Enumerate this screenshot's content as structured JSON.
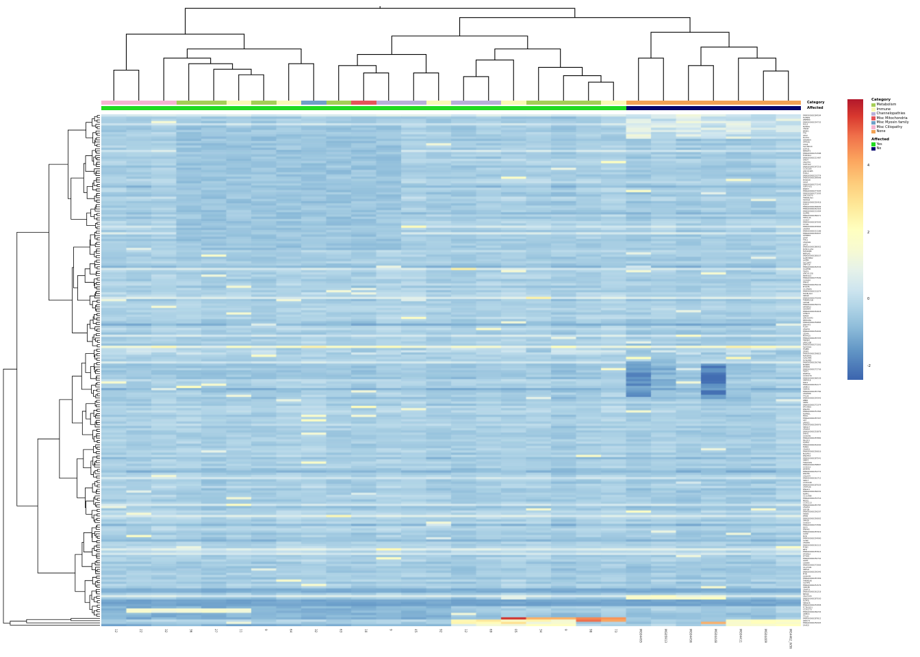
{
  "annotations": {
    "category_title": "Category",
    "affected_title": "Affected",
    "column_categories": [
      "ciliopathy",
      "ciliopathy",
      "ciliopathy",
      "metabolism",
      "metabolism",
      "immune",
      "metabolism",
      "immune",
      "myosin",
      "metabolism",
      "mitochondria",
      "channelopathies",
      "channelopathies",
      "immune",
      "channelopathies",
      "channelopathies",
      "immune",
      "metabolism",
      "metabolism",
      "metabolism",
      "immune",
      "none",
      "none",
      "none",
      "none",
      "none",
      "none",
      "none"
    ],
    "column_affected": [
      "yes",
      "yes",
      "yes",
      "yes",
      "yes",
      "yes",
      "yes",
      "yes",
      "yes",
      "yes",
      "yes",
      "yes",
      "yes",
      "yes",
      "yes",
      "yes",
      "yes",
      "yes",
      "yes",
      "yes",
      "yes",
      "no",
      "no",
      "no",
      "no",
      "no",
      "no",
      "no"
    ]
  },
  "legend": {
    "category_title": "Category",
    "category_items": [
      {
        "label": "Metabolism",
        "key": "metabolism",
        "color": "#A5CE56"
      },
      {
        "label": "Immune",
        "key": "immune",
        "color": "#FAFAB4"
      },
      {
        "label": "Channelopathies",
        "key": "channelopathies",
        "color": "#B8B0D8"
      },
      {
        "label": "Misc Mitochondria",
        "key": "mitochondria",
        "color": "#E4555A"
      },
      {
        "label": "Misc Myosin family",
        "key": "myosin",
        "color": "#6FA0C8"
      },
      {
        "label": "Misc Ciliopathy",
        "key": "ciliopathy",
        "color": "#F6B3D0"
      },
      {
        "label": "None",
        "key": "none",
        "color": "#F2A254"
      }
    ],
    "affected_title": "Affected",
    "affected_items": [
      {
        "label": "Yes",
        "key": "yes",
        "color": "#21DB21"
      },
      {
        "label": "No",
        "key": "no",
        "color": "#05056E"
      }
    ]
  },
  "chart_data": {
    "type": "heatmap",
    "n_rows": 230,
    "n_cols": 28,
    "value_range": [
      -2.4,
      6.0
    ],
    "colorbar_ticks": [
      4,
      2,
      0,
      -2
    ],
    "grid": false,
    "legend_position": "right",
    "colormap_stops": [
      {
        "v": -2.4,
        "c": "#3B64AE"
      },
      {
        "v": -1.5,
        "c": "#6397C6"
      },
      {
        "v": -0.8,
        "c": "#8FBDDA"
      },
      {
        "v": -0.2,
        "c": "#B2D5E7"
      },
      {
        "v": 0.3,
        "c": "#CEE5EF"
      },
      {
        "v": 0.9,
        "c": "#E6F2E9"
      },
      {
        "v": 1.5,
        "c": "#F7FAD1"
      },
      {
        "v": 2.1,
        "c": "#FFFFBF"
      },
      {
        "v": 2.8,
        "c": "#FEE999"
      },
      {
        "v": 3.5,
        "c": "#FDCC7B"
      },
      {
        "v": 4.2,
        "c": "#FBA35D"
      },
      {
        "v": 4.9,
        "c": "#F0704A"
      },
      {
        "v": 5.5,
        "c": "#D8382E"
      },
      {
        "v": 6.0,
        "c": "#B2182B"
      }
    ],
    "col_labels": [
      "12",
      "22",
      "32",
      "36",
      "27",
      "11",
      "9",
      "64",
      "32",
      "63",
      "10",
      "9",
      "45",
      "92",
      "12",
      "69",
      "05",
      "34",
      "9",
      "98",
      "73",
      "MG04495",
      "MG05913",
      "MG04456",
      "MG04448",
      "MG04411",
      "MG04409",
      "MG4462_W36"
    ],
    "row_labels": [
      "ENSG00000284594",
      "FGFBP2",
      "ZNF880",
      "ENSG00000254732",
      "RGL3",
      "NANOG",
      "VSIG8",
      "BRSK1",
      "TTK",
      "VAV2",
      "PLCD4",
      "GRAMD4",
      "ATP1B1",
      "COA4",
      "SLC38A10",
      "GSTO2",
      "NMNAT2",
      "ENSG00000231588",
      "FOXD4L1",
      "ENSG00000221487",
      "GNG4",
      "C8orf34",
      "SULT1A2",
      "ENSG00000267216",
      "CCDC185",
      "LINC01985",
      "FOXL1",
      "ENSG00000233774",
      "ENSG00000269998",
      "PCSK1N",
      "ALG2",
      "ENSG00000273142",
      "USP3-AS1",
      "PARD3",
      "ENSG00000277005",
      "ENSG00000271005",
      "LINC00570",
      "TPRKB-AS1",
      "S100A2",
      "ENSG00000220418",
      "KLHL4",
      "ENSG00000269699",
      "ENSG00000261324",
      "ENSG00000231404",
      "GLIPR1",
      "ENSG00000280071",
      "TPM1-AS",
      "CCDC7",
      "ENSG00000267092",
      "TTYH1",
      "ENSG00000245664",
      "CFAP44",
      "ENSG00000221188",
      "ENSG00000263007",
      "STMND1",
      "GFAP",
      "TMC1",
      "CFAP161",
      "GPT2",
      "ENSG00000280952",
      "RUSC1-AS1",
      "FAM166B",
      "MRPL45",
      "ENSG00000285037",
      "GAPDHP62",
      "AATBC",
      "SLC16A3",
      "ZNF728",
      "ENSG00000261534",
      "CALHM6",
      "TEKT4",
      "LINC01128",
      "PKHD1L1",
      "ENSG00000273599",
      "CLDN34",
      "DNAI2",
      "ENSG00000259134",
      "MYO7B",
      "C1QTNF8",
      "ENSG00000231074",
      "HOXB-AS3",
      "SPAG6",
      "ENSG00000270049",
      "TMEM151B",
      "CRYGN",
      "ENSG00000256151",
      "KRT8P12",
      "ADGRF4",
      "ENSG00000261618",
      "SHISA3",
      "RIMS4",
      "LINC02043",
      "PPP1R3G",
      "ENSG00000259865",
      "DNAAF3",
      "TCHH",
      "CFAP70",
      "ENSG00000254092",
      "CES4A",
      "MS4A15",
      "ENSG00000287335",
      "TRIM67",
      "LRRC10B",
      "ENSG00000273301",
      "SLCO4A1",
      "HSPB9",
      "ZP3P2",
      "ENSG00000259823",
      "FAM183A",
      "C20orf85",
      "DYNLRB2",
      "ENSG00000250786",
      "MORN5",
      "WDR49",
      "ENSG00000272736",
      "TEKT1",
      "RSPH4A",
      "CCDC170",
      "ENSG00000260539",
      "SPATA18",
      "DRC1",
      "ENSG00000261177",
      "ARMC3",
      "VWA3A",
      "ENSG00000287784",
      "CFAP206",
      "TTC29",
      "ENSG00000254343",
      "ZBBX",
      "SNTN",
      "ENSG00000272374",
      "EFCAB10",
      "DNAH9",
      "ENSG00000251364",
      "ROPN1L",
      "MNS1",
      "ENSG00000287307",
      "AK7",
      "LRRIQ1",
      "ENSG00000259976",
      "SPAG17",
      "CFAP43",
      "ENSG00000253878",
      "DNAI1",
      "CCDC39",
      "ENSG00000287882",
      "PIH1D3",
      "RSPH9",
      "ENSG00000261040",
      "FANK1",
      "CFAP53",
      "ENSG00000250616",
      "MAATS1",
      "DNAH12",
      "ENSG00000287541",
      "SPEF2",
      "TSNAXIP1",
      "ENSG00000258807",
      "CCDC13",
      "WDR78",
      "ENSG00000254772",
      "DNAH6",
      "C9orf24",
      "ENSG00000261712",
      "SPA17",
      "CCDC146",
      "ENSG00000287029",
      "CFAP126",
      "DNALI1",
      "ENSG00000260032",
      "RSPH1",
      "C11orf88",
      "ENSG00000253716",
      "MEIG1",
      "CCDC113",
      "ENSG00000287787",
      "CFAP52",
      "ODF3B",
      "ENSG00000259207",
      "TPPP3",
      "EFHB",
      "ENSG00000250802",
      "SPAG8",
      "CCDC17",
      "ENSG00000272582",
      "IQCG",
      "DNAH5",
      "ENSG00000287919",
      "CATIP",
      "MOK",
      "ENSG00000254990",
      "CCNO",
      "CFAP45",
      "ENSG00000261115",
      "FOXJ1",
      "PIFO",
      "ENSG00000287614",
      "STOML3",
      "DTHD1",
      "ENSG00000250742",
      "AGR3",
      "CDHR4",
      "ENSG00000272905",
      "C1orf194",
      "SNTG2",
      "ENSG00000259345",
      "MYB",
      "CCDC78",
      "ENSG00000287456",
      "TMEM190",
      "ULK4P3",
      "ENSG00000251576",
      "VWA3B",
      "CFAP73",
      "ENSG00000261218",
      "NEK10",
      "C6orf118",
      "ENSG00000287030",
      "DZIP1L",
      "SPAG16",
      "ENSG00000253958",
      "TCTEX1D1",
      "CCDC173",
      "ENSG00000260234",
      "ARMC4",
      "TTLL9",
      "ENSG00000287612",
      "LRRC71",
      "ENSG00000250945",
      "SAXO2"
    ],
    "generation": {
      "seed": 42,
      "base_mean": -0.35,
      "row_jitter": 0.5,
      "cell_jitter": 0.5,
      "col_offset_range": 0.24,
      "bright_cell_prob": 0.02,
      "specials": [
        {
          "rows": [
            0,
            10
          ],
          "cols": [
            21,
            27
          ],
          "v": 0.5,
          "j": 0.8
        },
        {
          "rows": [
            5,
            60
          ],
          "cols": [
            3,
            11
          ],
          "v": -0.6,
          "j": 0.3
        },
        {
          "rows": [
            104,
            104
          ],
          "cols": [
            0,
            27
          ],
          "v": 1.5,
          "j": 1.0
        },
        {
          "rows": [
            105,
            107
          ],
          "cols": [
            0,
            27
          ],
          "v": -0.1,
          "j": 0.6
        },
        {
          "rows": [
            109,
            109
          ],
          "cols": [
            21,
            21
          ],
          "v": 2.1,
          "j": 0.1
        },
        {
          "rows": [
            109,
            109
          ],
          "cols": [
            25,
            25
          ],
          "v": 2.3,
          "j": 0.1
        },
        {
          "rows": [
            111,
            126
          ],
          "cols": [
            21,
            21
          ],
          "v": -1.5,
          "j": 0.5
        },
        {
          "rows": [
            110,
            128
          ],
          "cols": [
            22,
            22
          ],
          "v": -0.9,
          "j": 0.4
        },
        {
          "rows": [
            112,
            127
          ],
          "cols": [
            24,
            24
          ],
          "v": -1.7,
          "j": 0.5
        },
        {
          "rows": [
            117,
            120
          ],
          "cols": [
            24,
            24
          ],
          "v": -2.3,
          "j": 0.1
        },
        {
          "rows": [
            213,
            214
          ],
          "cols": [
            0,
            27
          ],
          "v": -1.1,
          "j": 0.15
        },
        {
          "rows": [
            216,
            217
          ],
          "cols": [
            21,
            24
          ],
          "v": 1.7,
          "j": 0.6
        },
        {
          "rows": [
            218,
            220
          ],
          "cols": [
            0,
            27
          ],
          "v": -1.25,
          "j": 0.15
        },
        {
          "rows": [
            221,
            226
          ],
          "cols": [
            0,
            13
          ],
          "v": -1.0,
          "j": 0.3
        },
        {
          "rows": [
            222,
            223
          ],
          "cols": [
            1,
            5
          ],
          "v": 1.4,
          "j": 0.3
        },
        {
          "rows": [
            226,
            226
          ],
          "cols": [
            16,
            16
          ],
          "v": 5.6,
          "j": 0
        },
        {
          "rows": [
            226,
            226
          ],
          "cols": [
            17,
            18
          ],
          "v": 3.6,
          "j": 0.4
        },
        {
          "rows": [
            226,
            227
          ],
          "cols": [
            19,
            20
          ],
          "v": 4.6,
          "j": 0.5
        },
        {
          "rows": [
            227,
            229
          ],
          "cols": [
            14,
            18
          ],
          "v": 1.8,
          "j": 1.2
        },
        {
          "rows": [
            228,
            228
          ],
          "cols": [
            24,
            24
          ],
          "v": 4.0,
          "j": 0
        },
        {
          "rows": [
            227,
            229
          ],
          "cols": [
            25,
            27
          ],
          "v": 1.8,
          "j": 0.6
        },
        {
          "rows": [
            229,
            229
          ],
          "cols": [
            0,
            13
          ],
          "v": -1.0,
          "j": 0.3
        }
      ]
    },
    "top_dendrogram": {
      "h": 1.0,
      "c": [
        {
          "h": 0.72,
          "c": [
            {
              "h": 0.33,
              "c": [
                0,
                1
              ]
            },
            {
              "h": 0.56,
              "c": [
                {
                  "h": 0.46,
                  "c": [
                    2,
                    {
                      "h": 0.4,
                      "c": [
                        3,
                        {
                          "h": 0.34,
                          "c": [
                            4,
                            {
                              "h": 0.28,
                              "c": [
                                5,
                                6
                              ]
                            }
                          ]
                        }
                      ]
                    }
                  ]
                },
                {
                  "h": 0.4,
                  "c": [
                    7,
                    8
                  ]
                }
              ]
            }
          ]
        },
        {
          "h": 0.9,
          "c": [
            {
              "h": 0.7,
              "c": [
                {
                  "h": 0.5,
                  "c": [
                    {
                      "h": 0.38,
                      "c": [
                        9,
                        {
                          "h": 0.3,
                          "c": [
                            10,
                            11
                          ]
                        }
                      ]
                    },
                    {
                      "h": 0.3,
                      "c": [
                        12,
                        13
                      ]
                    }
                  ]
                },
                {
                  "h": 0.56,
                  "c": [
                    {
                      "h": 0.44,
                      "c": [
                        {
                          "h": 0.26,
                          "c": [
                            14,
                            15
                          ]
                        },
                        16
                      ]
                    },
                    {
                      "h": 0.36,
                      "c": [
                        17,
                        {
                          "h": 0.27,
                          "c": [
                            18,
                            {
                              "h": 0.2,
                              "c": [
                                19,
                                20
                              ]
                            }
                          ]
                        }
                      ]
                    }
                  ]
                }
              ]
            },
            {
              "h": 0.74,
              "c": [
                {
                  "h": 0.46,
                  "c": [
                    21,
                    22
                  ]
                },
                {
                  "h": 0.58,
                  "c": [
                    {
                      "h": 0.38,
                      "c": [
                        23,
                        24
                      ]
                    },
                    {
                      "h": 0.46,
                      "c": [
                        25,
                        {
                          "h": 0.32,
                          "c": [
                            26,
                            27
                          ]
                        }
                      ]
                    }
                  ]
                }
              ]
            }
          ]
        }
      ]
    },
    "left_dendrogram": {
      "forced_root": {
        "main_split": 105,
        "tail_start": 226
      },
      "note": "procedurally generated binary tree over 230 rows, root joins bottom 4 rows last"
    }
  }
}
